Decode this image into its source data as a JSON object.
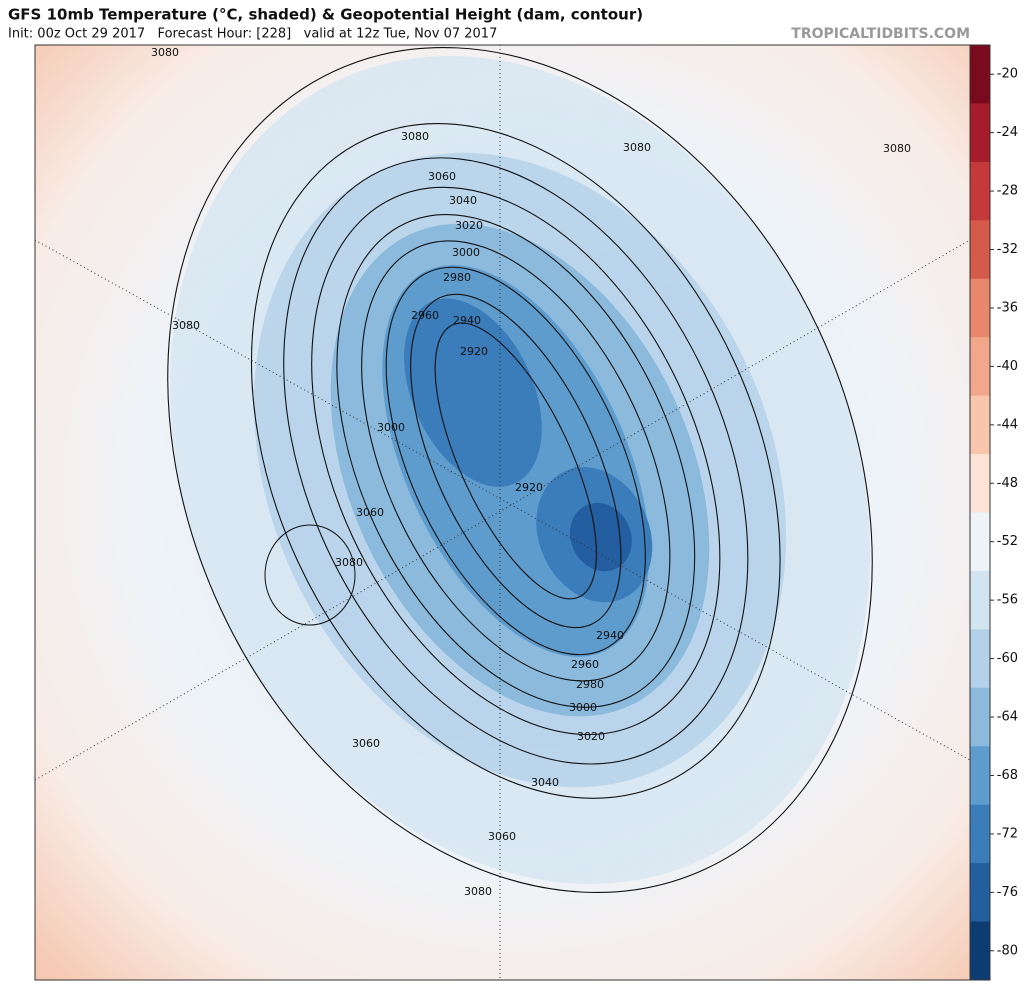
{
  "header": {
    "title": "GFS 10mb Temperature (°C, shaded) & Geopotential Height (dam, contour)",
    "subtitle": "Init: 00z Oct 29 2017   Forecast Hour: [228]   valid at 12z Tue, Nov 07 2017",
    "watermark": "TROPICALTIDBITS.COM"
  },
  "colorbar": {
    "lim": [
      -18,
      -82
    ],
    "ticks": [
      -20,
      -24,
      -28,
      -32,
      -36,
      -40,
      -44,
      -48,
      -52,
      -56,
      -60,
      -64,
      -68,
      -72,
      -76,
      -80
    ],
    "colors": [
      "#7a0a1e",
      "#a51c2a",
      "#c43a3a",
      "#d65a4a",
      "#e8876c",
      "#f2a78a",
      "#f8c6ad",
      "#fbe3d6",
      "#eef3f8",
      "#d3e4f1",
      "#b3d1e8",
      "#8bbadd",
      "#5e9ccd",
      "#3b7cba",
      "#225ea0",
      "#0d3c73"
    ]
  },
  "map": {
    "contour_labels": [
      3080,
      3080,
      3080,
      3080,
      3060,
      3040,
      3020,
      3000,
      2980,
      2960,
      2940,
      2920,
      3080,
      3000,
      2920,
      3060,
      3080,
      2940,
      2960,
      2980,
      3000,
      3020,
      3040,
      3060,
      3060,
      3080
    ]
  }
}
